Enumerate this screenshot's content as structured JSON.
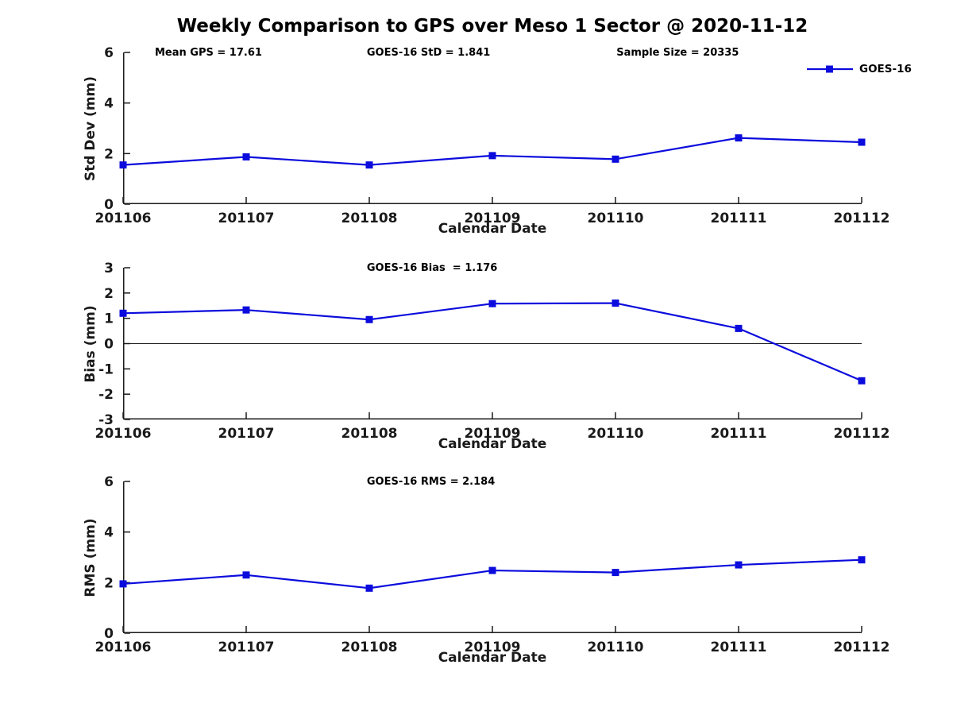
{
  "title": "Weekly Comparison to GPS over Meso 1 Sector @ 2020-11-12",
  "legend": {
    "label": "GOES-16",
    "color": "#0b0bdd",
    "marker": "square"
  },
  "chart_data": [
    {
      "type": "line",
      "name": "std-dev",
      "categories": [
        "201106",
        "201107",
        "201108",
        "201109",
        "201110",
        "201111",
        "201112"
      ],
      "series": [
        {
          "name": "GOES-16",
          "color": "#0b0bdd",
          "marker": "square",
          "values": [
            1.55,
            1.87,
            1.55,
            1.92,
            1.78,
            2.62,
            2.45
          ]
        }
      ],
      "xlabel": "Calendar Date",
      "ylabel": "Std Dev (mm)",
      "ylim": [
        0,
        6
      ],
      "yticks": [
        0,
        2,
        4,
        6
      ],
      "grid": false,
      "legend_position": "top-right",
      "annotations": [
        "Mean GPS = 17.61",
        "GOES-16 StD = 1.841",
        "Sample Size = 20335"
      ]
    },
    {
      "type": "line",
      "name": "bias",
      "categories": [
        "201106",
        "201107",
        "201108",
        "201109",
        "201110",
        "201111",
        "201112"
      ],
      "series": [
        {
          "name": "GOES-16",
          "color": "#0b0bdd",
          "marker": "square",
          "values": [
            1.2,
            1.33,
            0.95,
            1.58,
            1.6,
            0.6,
            -1.47
          ]
        }
      ],
      "xlabel": "Calendar Date",
      "ylabel": "Bias (mm)",
      "ylim": [
        -3,
        3
      ],
      "yticks": [
        -3,
        -2,
        -1,
        0,
        1,
        2,
        3
      ],
      "zero_line": true,
      "grid": false,
      "annotations": [
        "GOES-16 Bias  = 1.176"
      ]
    },
    {
      "type": "line",
      "name": "rms",
      "categories": [
        "201106",
        "201107",
        "201108",
        "201109",
        "201110",
        "201111",
        "201112"
      ],
      "series": [
        {
          "name": "GOES-16",
          "color": "#0b0bdd",
          "marker": "square",
          "values": [
            1.95,
            2.3,
            1.78,
            2.48,
            2.4,
            2.7,
            2.9
          ]
        }
      ],
      "xlabel": "Calendar Date",
      "ylabel": "RMS (mm)",
      "ylim": [
        0,
        6
      ],
      "yticks": [
        0,
        2,
        4,
        6
      ],
      "grid": false,
      "annotations": [
        "GOES-16 RMS = 2.184"
      ]
    }
  ]
}
